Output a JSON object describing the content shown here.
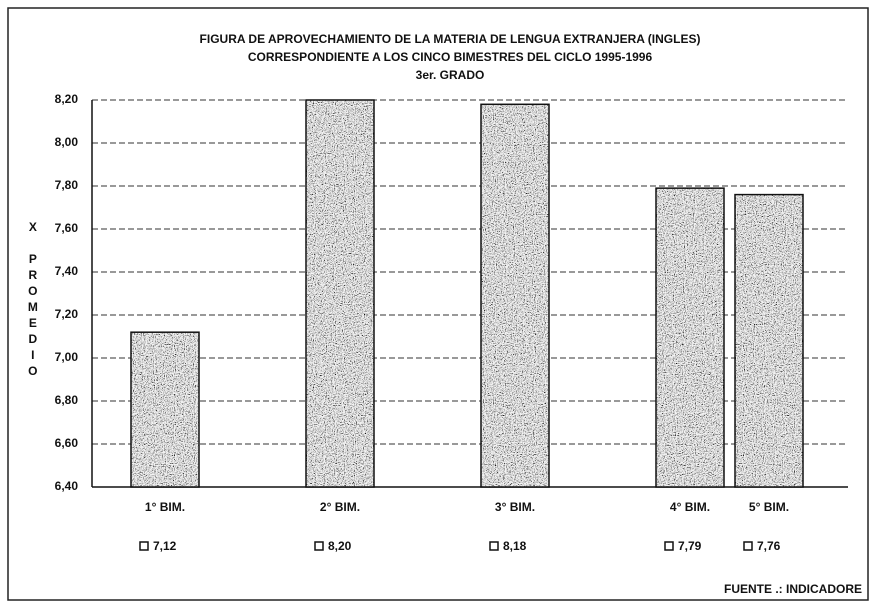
{
  "chart_data": {
    "type": "bar",
    "title": [
      "FIGURA DE APROVECHAMIENTO DE LA MATERIA DE LENGUA EXTRANJERA (INGLES)",
      "CORRESPONDIENTE A LOS CINCO BIMESTRES DEL CICLO 1995-1996",
      "3er. GRADO"
    ],
    "ylabel": "X PROMEDIO",
    "categories": [
      "1° BIM.",
      "2° BIM.",
      "3° BIM.",
      "4° BIM.",
      "5° BIM."
    ],
    "values": [
      7.12,
      8.2,
      8.18,
      7.79,
      7.76
    ],
    "value_labels": [
      "7,12",
      "8,20",
      "8,18",
      "7,79",
      "7,76"
    ],
    "color": "#6a6a6a",
    "ylim": [
      6.4,
      8.2
    ],
    "yticks": [
      {
        "value": 6.4,
        "label": "6,40"
      },
      {
        "value": 6.6,
        "label": "6,60"
      },
      {
        "value": 6.8,
        "label": "6,80"
      },
      {
        "value": 7.0,
        "label": "7,00"
      },
      {
        "value": 7.2,
        "label": "7,20"
      },
      {
        "value": 7.4,
        "label": "7,40"
      },
      {
        "value": 7.6,
        "label": "7,60"
      },
      {
        "value": 7.8,
        "label": "7,80"
      },
      {
        "value": 8.0,
        "label": "8,00"
      },
      {
        "value": 8.2,
        "label": "8,20"
      }
    ],
    "grid": true,
    "source": "FUENTE .: INDICADORE"
  }
}
